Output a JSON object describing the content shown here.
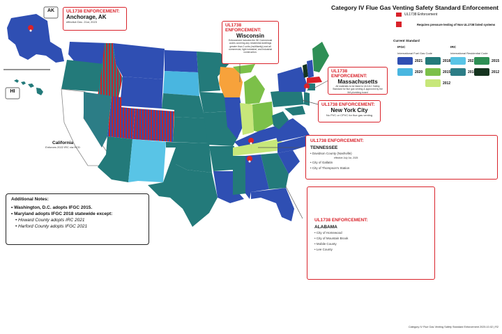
{
  "title": "Category IV Flue Gas Venting Safety  Standard Enforcement",
  "colors": {
    "ifgc_2021": "#2f4fb3",
    "ifgc_2018": "#237a7a",
    "ifgc_2020": "#49b6e0",
    "ifgc_2015": "#7cc049",
    "ifgc_2012": "#c7e77a",
    "irc_2021": "#59c4e6",
    "irc_2018": "#2c7d86",
    "irc_2015": "#2e8f55",
    "irc_2012": "#15341f",
    "wisconsin": "#f7a23b",
    "enforcement_red": "#d9222a"
  },
  "legend": {
    "ul_label": "UL1738 Enforcement",
    "pressure_label": "Requires pressure testing of Non UL1738 listed systems",
    "current_standard": "Current Standard",
    "ifgc_header": "IFGC",
    "ifgc_sub": "International Fuel Gas Code",
    "irc_header": "IRC",
    "irc_sub": "International Residential Code",
    "ifgc_years": [
      "2021",
      "2018",
      "2020",
      "2015",
      "2012"
    ],
    "irc_years": [
      "2021",
      "2015",
      "2018",
      "2012"
    ]
  },
  "callouts": {
    "alaska": {
      "header": "UL1738 ENFORCEMENT:",
      "place": "Anchorage, AK",
      "note": "effective Dec. 21st, 2023"
    },
    "wisconsin": {
      "header": "UL1738 ENFORCEMENT:",
      "place": "Wisconsin",
      "note": "Enforcement includes the WI Commercial codes covering any residential dwellings greater than 2 units (multifamily) and all commercial, light industrial, and industrial construction."
    },
    "massachusetts": {
      "header": "UL1738 ENFORCEMENT:",
      "place": "Massachusetts",
      "note": "All materials to be listed to UL/ULC Safety Standard for flue gas venting & approved by the MA plumbing board"
    },
    "nyc": {
      "header": "UL1738 ENFORCEMENT:",
      "place": "New York City",
      "note": "No PVC or CPVC for flue gas venting"
    },
    "tennessee": {
      "header": "UL1738 ENFORCEMENT:",
      "place": "TENNESSEE",
      "items": [
        "Davidson County (Nashville)",
        "effective July 1st, 2025",
        "City of Gallatin",
        "City of Thompson's Station"
      ]
    },
    "alabama": {
      "header": "UL1738 ENFORCEMENT:",
      "place": "ALABAMA",
      "items": [
        "City of Homewood",
        "City of Mountain Brook",
        "Mobile County",
        "Lee County"
      ]
    }
  },
  "inset_labels": {
    "ak": "AK",
    "hi": "HI",
    "california": "California",
    "california_note": "Enforces 2022 IRC via HCD"
  },
  "notes": {
    "header": "Additional Notes:",
    "items": [
      "Washington, D.C. adopts IFGC 2015.",
      "Maryland adopts IFGC 2018 statewide except:",
      "Howard County adopts IRC 2021",
      "Harford County adopts IFGC 2021"
    ]
  },
  "footer": "Category IV Flue Gas Venting Safety Standard Enforcement   2025.10.02 | R2"
}
